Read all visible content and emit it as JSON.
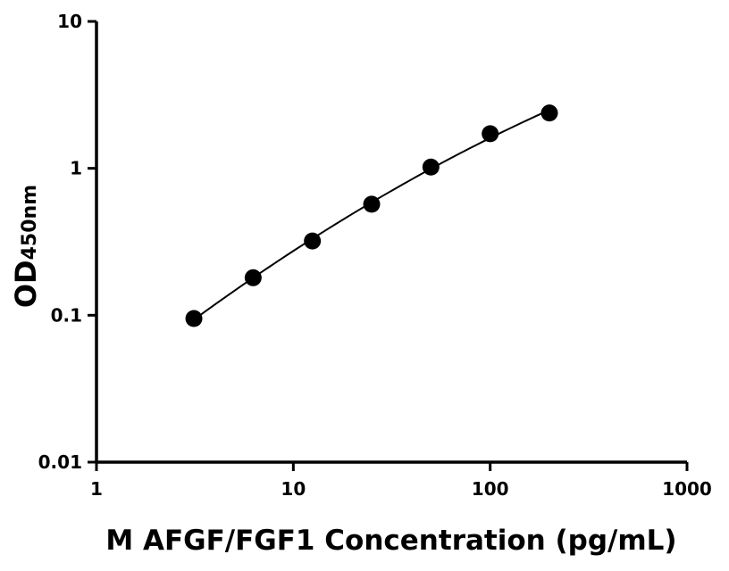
{
  "chart_data": {
    "type": "scatter",
    "xscale": "log",
    "yscale": "log",
    "xlim": [
      1,
      1000
    ],
    "ylim": [
      0.01,
      10
    ],
    "x_ticks": [
      1,
      10,
      100,
      1000
    ],
    "x_tick_labels": [
      "1",
      "10",
      "100",
      "1000"
    ],
    "y_ticks": [
      0.01,
      0.1,
      1,
      10
    ],
    "y_tick_labels": [
      "0.01",
      "0.1",
      "1",
      "10"
    ],
    "xlabel": "M AFGF/FGF1 Concentration (pg/mL)",
    "ylabel_main": "OD",
    "ylabel_sub": "450nm",
    "grid": false,
    "legend": "none",
    "fit_line": true,
    "series": [
      {
        "x": [
          3.125,
          6.25,
          12.5,
          25,
          50,
          100,
          200
        ],
        "y": [
          0.095,
          0.18,
          0.32,
          0.57,
          1.02,
          1.72,
          2.38
        ]
      }
    ],
    "colors": {
      "points": "#000000",
      "line": "#000000",
      "axes": "#000000"
    }
  }
}
